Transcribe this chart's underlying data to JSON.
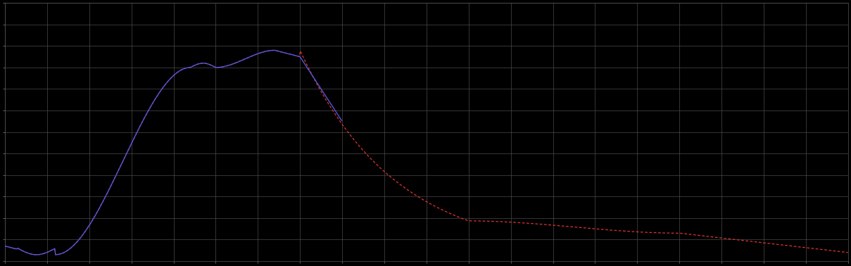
{
  "background_color": "#000000",
  "plot_bg_color": "#000000",
  "grid_color": "#4a4a4a",
  "blue_line_color": "#5555dd",
  "red_line_color": "#dd3333",
  "x_min": 0,
  "x_max": 100,
  "y_min": 0,
  "y_max": 6,
  "x_major_ticks": [
    0,
    5,
    10,
    15,
    20,
    25,
    30,
    35,
    40,
    45,
    50,
    55,
    60,
    65,
    70,
    75,
    80,
    85,
    90,
    95,
    100
  ],
  "y_major_ticks": [
    0,
    0.5,
    1.0,
    1.5,
    2.0,
    2.5,
    3.0,
    3.5,
    4.0,
    4.5,
    5.0,
    5.5,
    6.0
  ],
  "figsize": [
    12.09,
    3.78
  ],
  "dpi": 100,
  "blue_x_end": 40
}
